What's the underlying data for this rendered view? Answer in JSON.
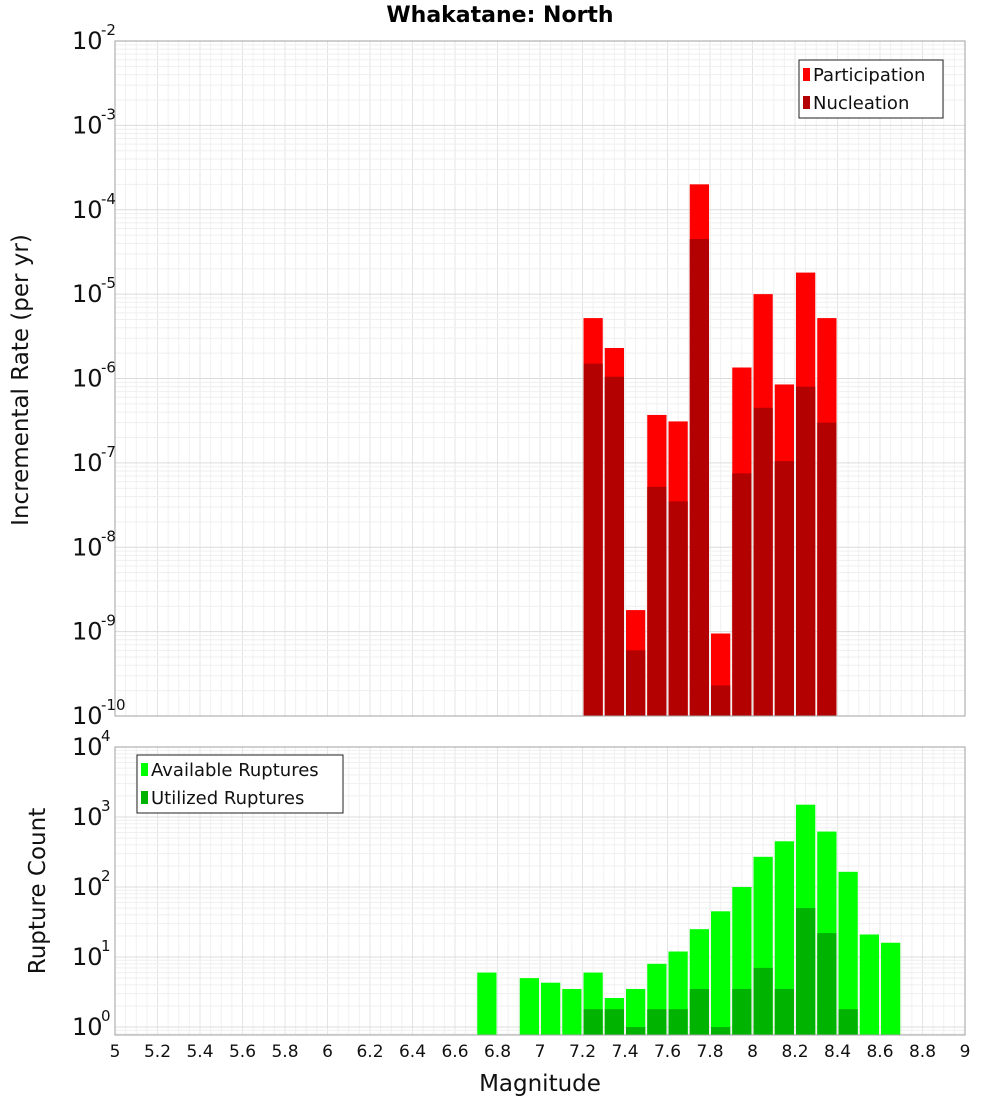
{
  "chart_data": [
    {
      "type": "bar",
      "title": "Whakatane: North",
      "ylabel": "Incremental Rate (per yr)",
      "xlabel": "",
      "yscale": "log",
      "ylim": [
        1e-10,
        0.01
      ],
      "xlim": [
        5,
        9
      ],
      "bar_width": 0.1,
      "grid": true,
      "legend_position": "top-right",
      "yticks": [
        {
          "base": "10",
          "exp": "-10",
          "value": 1e-10
        },
        {
          "base": "10",
          "exp": "-9",
          "value": 1e-09
        },
        {
          "base": "10",
          "exp": "-8",
          "value": 1e-08
        },
        {
          "base": "10",
          "exp": "-7",
          "value": 1e-07
        },
        {
          "base": "10",
          "exp": "-6",
          "value": 1e-06
        },
        {
          "base": "10",
          "exp": "-5",
          "value": 1e-05
        },
        {
          "base": "10",
          "exp": "-4",
          "value": 0.0001
        },
        {
          "base": "10",
          "exp": "-3",
          "value": 0.001
        },
        {
          "base": "10",
          "exp": "-2",
          "value": 0.01
        }
      ],
      "series": [
        {
          "name": "Participation",
          "color": "#ff0000",
          "points": [
            [
              7.25,
              5.2e-06
            ],
            [
              7.35,
              2.3e-06
            ],
            [
              7.45,
              1.8e-09
            ],
            [
              7.55,
              3.7e-07
            ],
            [
              7.65,
              3.1e-07
            ],
            [
              7.75,
              0.0002
            ],
            [
              7.85,
              9.5e-10
            ],
            [
              7.95,
              1.35e-06
            ],
            [
              8.05,
              1e-05
            ],
            [
              8.15,
              8.5e-07
            ],
            [
              8.25,
              1.8e-05
            ],
            [
              8.35,
              5.2e-06
            ]
          ]
        },
        {
          "name": "Nucleation",
          "color": "#b30000",
          "points": [
            [
              7.25,
              1.5e-06
            ],
            [
              7.35,
              1.05e-06
            ],
            [
              7.45,
              6e-10
            ],
            [
              7.55,
              5.2e-08
            ],
            [
              7.65,
              3.5e-08
            ],
            [
              7.75,
              4.5e-05
            ],
            [
              7.85,
              2.3e-10
            ],
            [
              7.95,
              7.5e-08
            ],
            [
              8.05,
              4.5e-07
            ],
            [
              8.15,
              1.05e-07
            ],
            [
              8.25,
              8e-07
            ],
            [
              8.35,
              3e-07
            ]
          ]
        }
      ]
    },
    {
      "type": "bar",
      "title": "",
      "ylabel": "Rupture Count",
      "xlabel": "Magnitude",
      "yscale": "log",
      "ylim": [
        0.77,
        10000
      ],
      "xlim": [
        5,
        9
      ],
      "bar_width": 0.1,
      "grid": true,
      "legend_position": "top-left",
      "yticks": [
        {
          "base": "10",
          "exp": "0",
          "value": 1
        },
        {
          "base": "10",
          "exp": "1",
          "value": 10
        },
        {
          "base": "10",
          "exp": "2",
          "value": 100
        },
        {
          "base": "10",
          "exp": "3",
          "value": 1000
        },
        {
          "base": "10",
          "exp": "4",
          "value": 10000
        }
      ],
      "xticks": [
        "5",
        "5.2",
        "5.4",
        "5.6",
        "5.8",
        "6",
        "6.2",
        "6.4",
        "6.6",
        "6.8",
        "7",
        "7.2",
        "7.4",
        "7.6",
        "7.8",
        "8",
        "8.2",
        "8.4",
        "8.6",
        "8.8",
        "9"
      ],
      "series": [
        {
          "name": "Available Ruptures",
          "color": "#00ff00",
          "points": [
            [
              6.75,
              6
            ],
            [
              6.95,
              5
            ],
            [
              7.05,
              4.3
            ],
            [
              7.15,
              3.5
            ],
            [
              7.25,
              6
            ],
            [
              7.35,
              2.6
            ],
            [
              7.45,
              3.5
            ],
            [
              7.55,
              8
            ],
            [
              7.65,
              12
            ],
            [
              7.75,
              25
            ],
            [
              7.85,
              45
            ],
            [
              7.95,
              100
            ],
            [
              8.05,
              270
            ],
            [
              8.15,
              450
            ],
            [
              8.25,
              1500
            ],
            [
              8.35,
              620
            ],
            [
              8.45,
              165
            ],
            [
              8.55,
              21
            ],
            [
              8.65,
              16
            ]
          ]
        },
        {
          "name": "Utilized Ruptures",
          "color": "#00b300",
          "points": [
            [
              7.25,
              1.8
            ],
            [
              7.35,
              1.8
            ],
            [
              7.45,
              1
            ],
            [
              7.55,
              1.8
            ],
            [
              7.65,
              1.8
            ],
            [
              7.75,
              3.5
            ],
            [
              7.85,
              1
            ],
            [
              7.95,
              3.5
            ],
            [
              8.05,
              7
            ],
            [
              8.15,
              3.5
            ],
            [
              8.25,
              50
            ],
            [
              8.35,
              22
            ],
            [
              8.45,
              1.8
            ]
          ]
        }
      ]
    }
  ]
}
